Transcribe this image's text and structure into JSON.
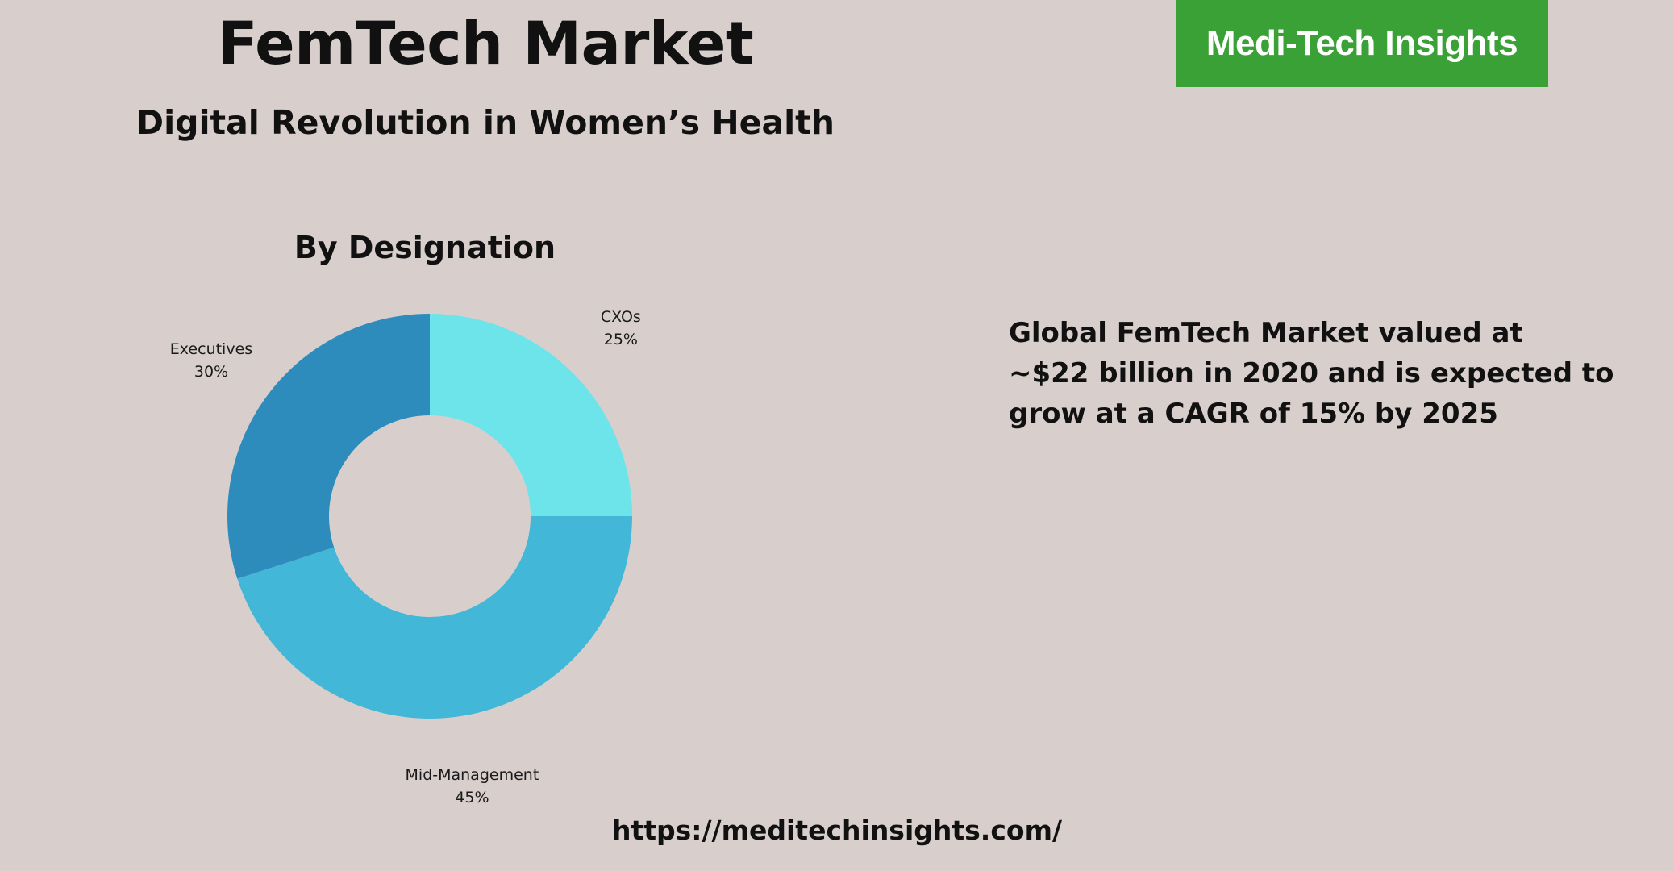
{
  "header": {
    "title": "FemTech Market",
    "subtitle": "Digital Revolution in Women’s Health"
  },
  "brand": {
    "name": "Medi-Tech Insights",
    "color": "#3aa136"
  },
  "chart_data": {
    "type": "pie",
    "variant": "donut",
    "title": "By Designation",
    "unit": "%",
    "slices": [
      {
        "label": "CXOs",
        "value": 25,
        "display": "25%",
        "color": "#6ce4ea"
      },
      {
        "label": "Mid-Management",
        "value": 45,
        "display": "45%",
        "color": "#42b7d7"
      },
      {
        "label": "Executives",
        "value": 30,
        "display": "30%",
        "color": "#2e8cbc"
      }
    ],
    "start_angle_deg": 0,
    "direction": "clockwise",
    "legend": "none"
  },
  "stat": {
    "lines": [
      "Global FemTech Market valued at",
      "~$22 billion in 2020 and is expected to",
      "grow at a CAGR of 15% by 2025"
    ]
  },
  "footer": {
    "url": "https://meditechinsights.com/"
  },
  "colors": {
    "background": "#d8cfcd",
    "text": "#111111"
  }
}
